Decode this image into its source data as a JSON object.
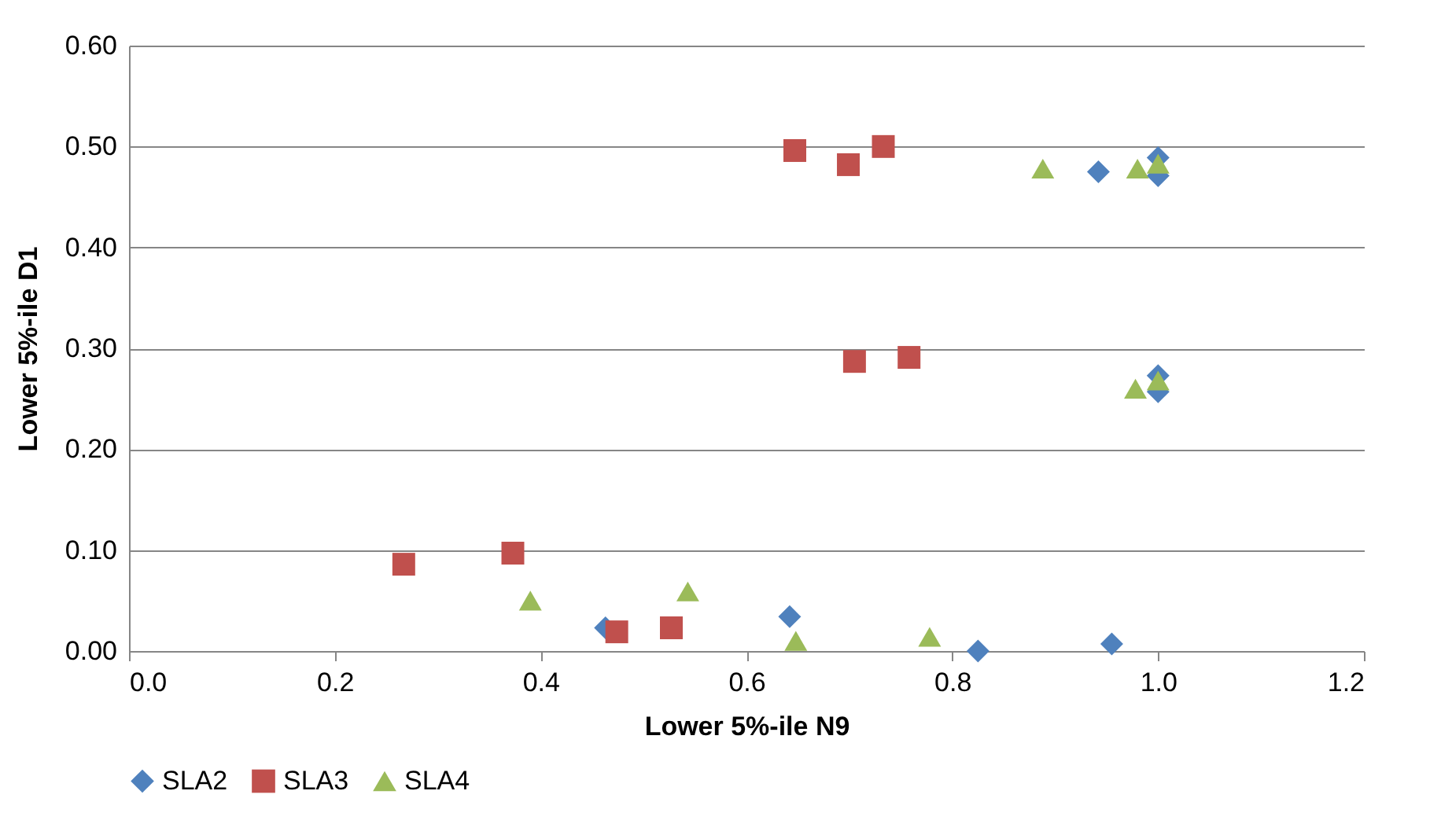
{
  "chart_data": {
    "type": "scatter",
    "xlabel": "Lower 5%-ile N9",
    "ylabel": "Lower 5%-ile D1",
    "xlim": [
      0,
      1.2
    ],
    "xticks": [
      {
        "value": 0,
        "label": "0.0"
      },
      0.2,
      0.4,
      0.6,
      0.8,
      {
        "value": 1,
        "label": "1.0"
      },
      1.2
    ],
    "ylim": [
      0,
      0.6
    ],
    "yticks": [
      {
        "value": 0,
        "label": "0.00"
      },
      {
        "value": 0.1,
        "label": "0.10"
      },
      {
        "value": 0.2,
        "label": "0.20"
      },
      {
        "value": 0.3,
        "label": "0.30"
      },
      {
        "value": 0.4,
        "label": "0.40"
      },
      {
        "value": 0.5,
        "label": "0.50"
      },
      {
        "value": 0.6,
        "label": "0.60"
      }
    ],
    "grid": "y",
    "legend": "bottom",
    "series": [
      {
        "name": "SLA2",
        "color": "#4f81bd",
        "marker": "diamond",
        "x": [
          0.463,
          0.642,
          0.825,
          0.955,
          0.942,
          1.0,
          1.0,
          1.0,
          1.0
        ],
        "values": [
          0.023,
          0.034,
          0.0,
          0.007,
          0.475,
          0.489,
          0.471,
          0.273,
          0.257
        ]
      },
      {
        "name": "SLA3",
        "color": "#c0504d",
        "marker": "square",
        "x": [
          0.267,
          0.373,
          0.474,
          0.527,
          0.647,
          0.699,
          0.733,
          0.705,
          0.758
        ],
        "values": [
          0.086,
          0.097,
          0.019,
          0.023,
          0.496,
          0.482,
          0.5,
          0.287,
          0.291
        ]
      },
      {
        "name": "SLA4",
        "color": "#9bbb59",
        "marker": "triangle",
        "x": [
          0.39,
          0.543,
          0.648,
          0.778,
          0.888,
          0.98,
          1.0,
          0.978,
          1.0
        ],
        "values": [
          0.05,
          0.059,
          0.01,
          0.014,
          0.478,
          0.478,
          0.483,
          0.26,
          0.268
        ]
      }
    ]
  }
}
